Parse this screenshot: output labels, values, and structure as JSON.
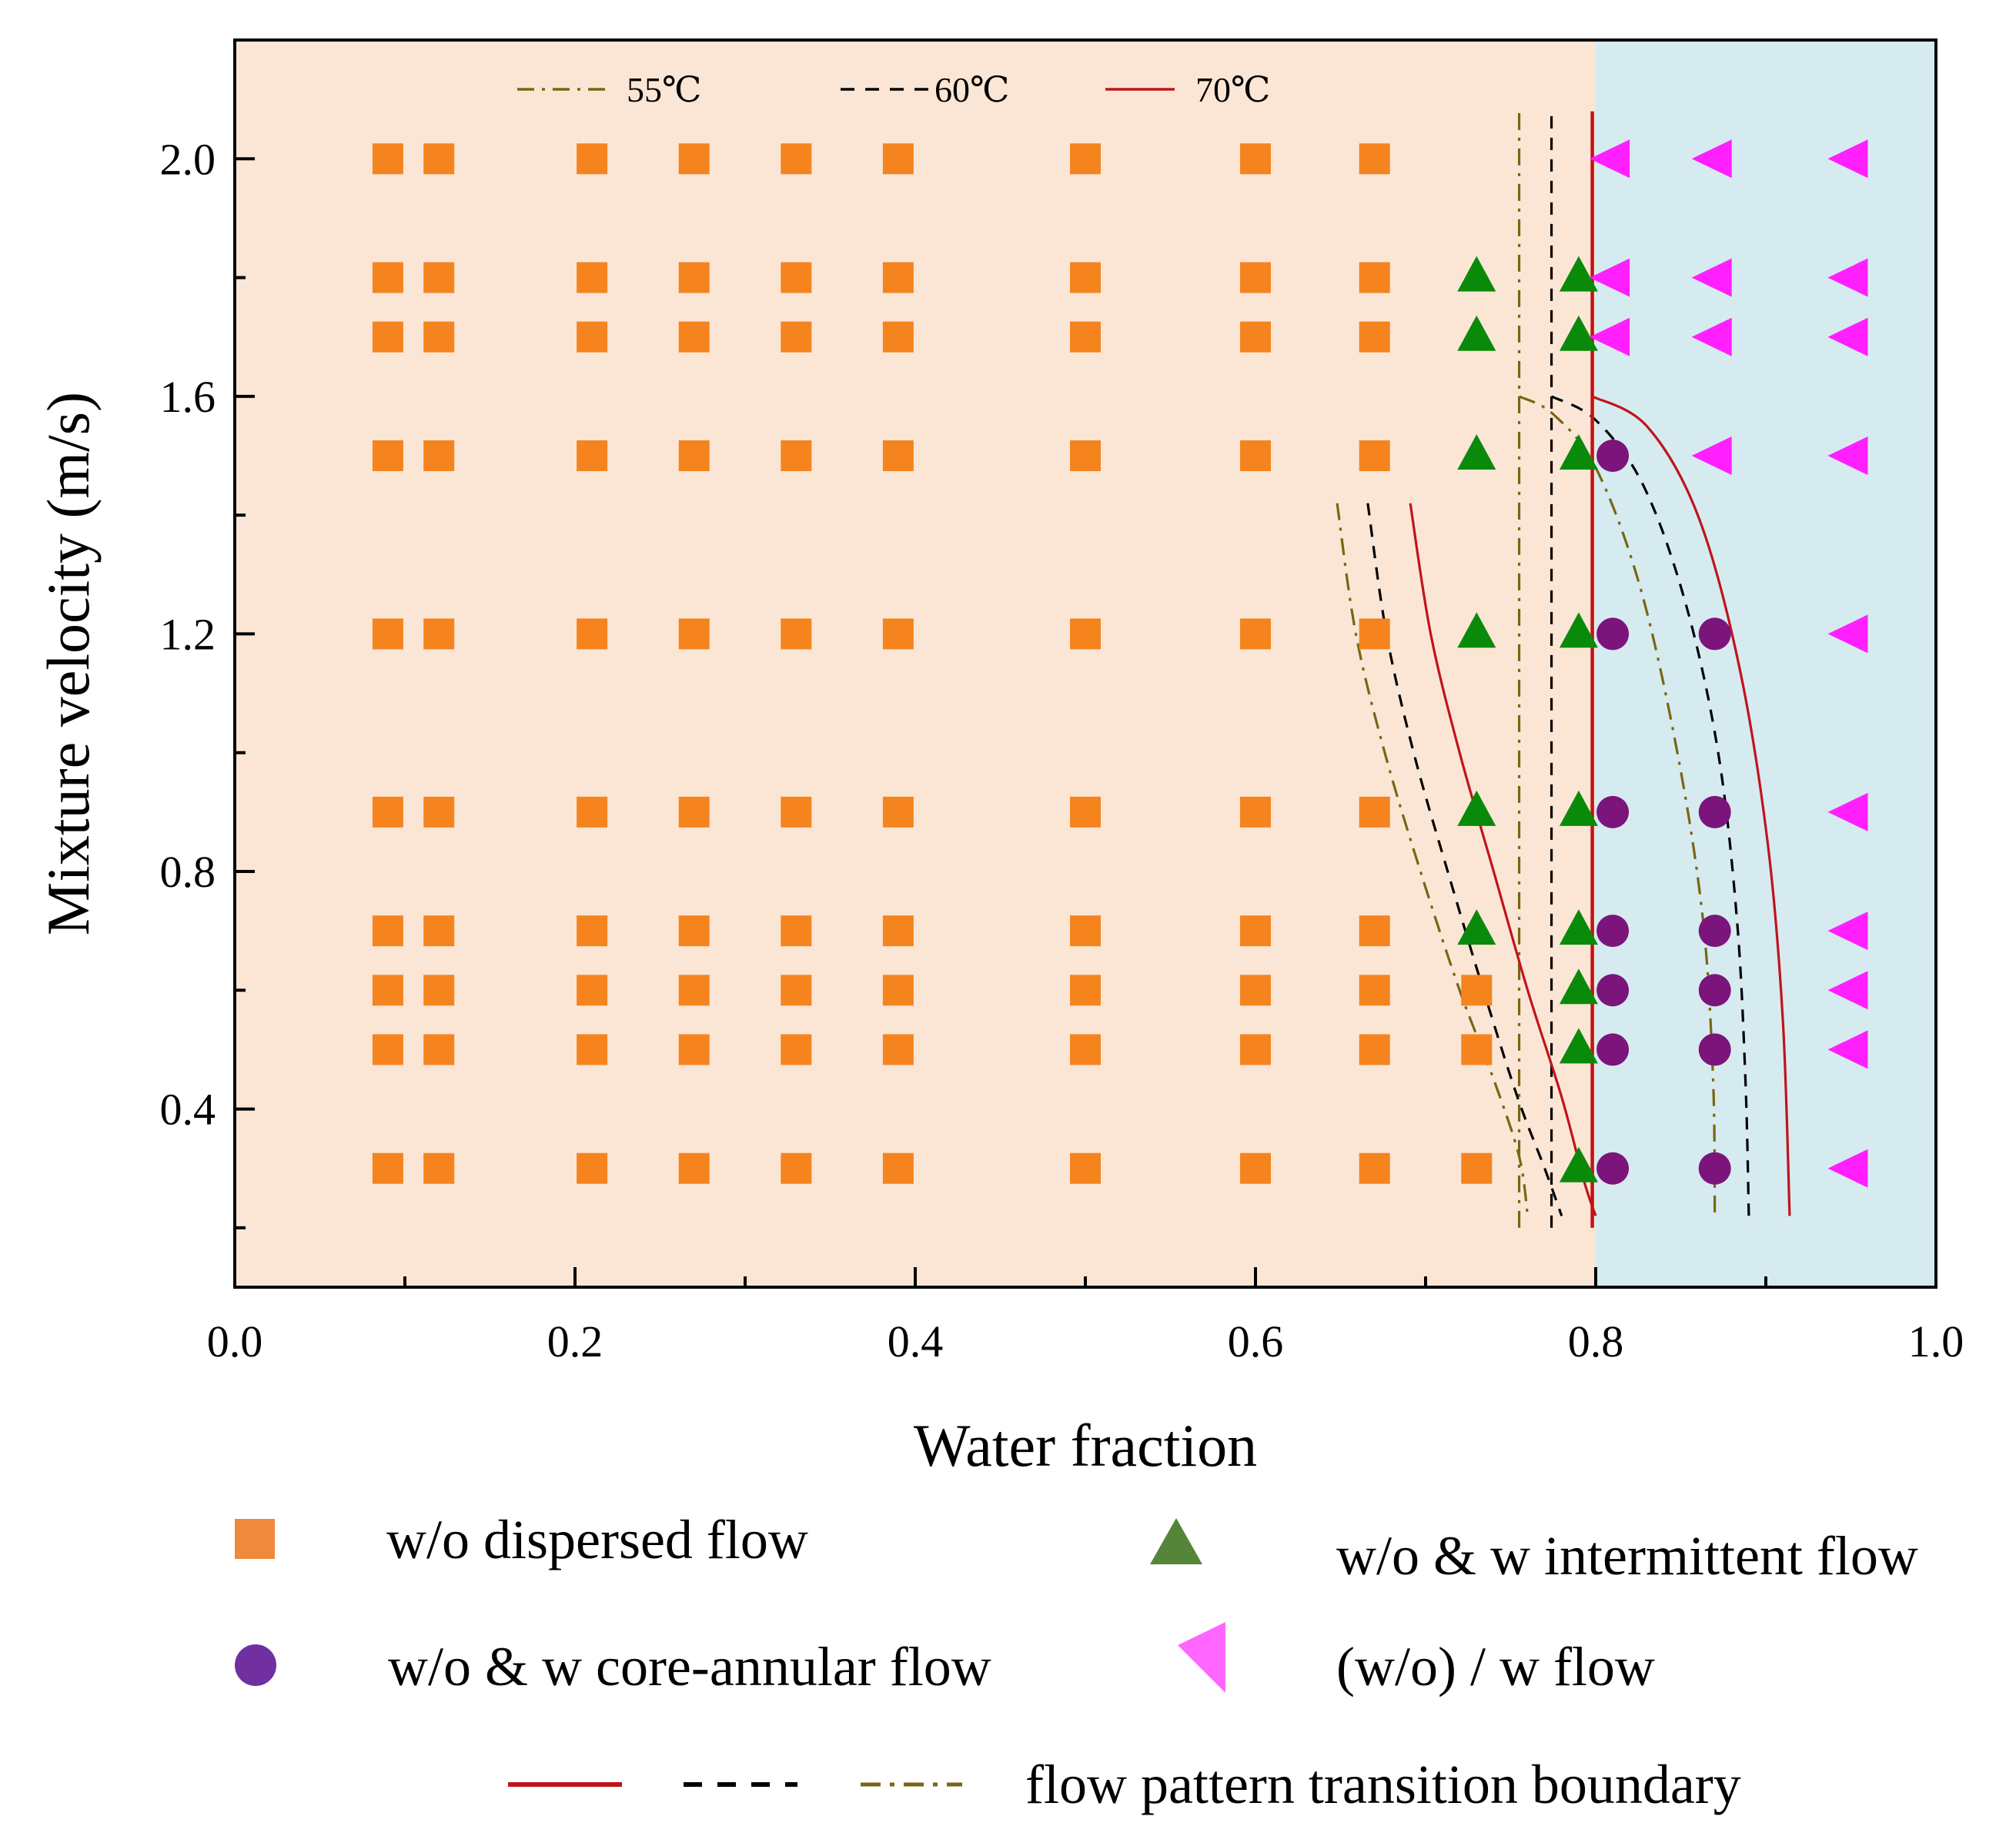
{
  "chart_data": {
    "type": "scatter",
    "xlabel": "Water fraction",
    "ylabel": "Mixture velocity (m/s)",
    "xlim": [
      0.0,
      1.0
    ],
    "ylim": [
      0.1,
      2.2
    ],
    "xticks": [
      0.0,
      0.2,
      0.4,
      0.6,
      0.8,
      1.0
    ],
    "xtick_labels": [
      "0.0",
      "0.2",
      "0.4",
      "0.6",
      "0.8",
      "1.0"
    ],
    "yticks": [
      0.4,
      0.8,
      1.2,
      1.6,
      2.0
    ],
    "ytick_labels": [
      "0.4",
      "0.8",
      "1.2",
      "1.6",
      "2.0"
    ],
    "regions": [
      {
        "x_from": 0.0,
        "x_to": 0.8,
        "color": "#fbe6d6"
      },
      {
        "x_from": 0.8,
        "x_to": 1.0,
        "color": "#d6ebf0"
      }
    ],
    "series": [
      {
        "name": "w/o dispersed flow",
        "marker": "square",
        "color": "#f5841f",
        "points": [
          [
            0.09,
            2.0
          ],
          [
            0.12,
            2.0
          ],
          [
            0.21,
            2.0
          ],
          [
            0.27,
            2.0
          ],
          [
            0.33,
            2.0
          ],
          [
            0.39,
            2.0
          ],
          [
            0.5,
            2.0
          ],
          [
            0.6,
            2.0
          ],
          [
            0.67,
            2.0
          ],
          [
            0.09,
            1.8
          ],
          [
            0.12,
            1.8
          ],
          [
            0.21,
            1.8
          ],
          [
            0.27,
            1.8
          ],
          [
            0.33,
            1.8
          ],
          [
            0.39,
            1.8
          ],
          [
            0.5,
            1.8
          ],
          [
            0.6,
            1.8
          ],
          [
            0.67,
            1.8
          ],
          [
            0.09,
            1.7
          ],
          [
            0.12,
            1.7
          ],
          [
            0.21,
            1.7
          ],
          [
            0.27,
            1.7
          ],
          [
            0.33,
            1.7
          ],
          [
            0.39,
            1.7
          ],
          [
            0.5,
            1.7
          ],
          [
            0.6,
            1.7
          ],
          [
            0.67,
            1.7
          ],
          [
            0.09,
            1.5
          ],
          [
            0.12,
            1.5
          ],
          [
            0.21,
            1.5
          ],
          [
            0.27,
            1.5
          ],
          [
            0.33,
            1.5
          ],
          [
            0.39,
            1.5
          ],
          [
            0.5,
            1.5
          ],
          [
            0.6,
            1.5
          ],
          [
            0.67,
            1.5
          ],
          [
            0.09,
            1.2
          ],
          [
            0.12,
            1.2
          ],
          [
            0.21,
            1.2
          ],
          [
            0.27,
            1.2
          ],
          [
            0.33,
            1.2
          ],
          [
            0.39,
            1.2
          ],
          [
            0.5,
            1.2
          ],
          [
            0.6,
            1.2
          ],
          [
            0.67,
            1.2
          ],
          [
            0.09,
            0.9
          ],
          [
            0.12,
            0.9
          ],
          [
            0.21,
            0.9
          ],
          [
            0.27,
            0.9
          ],
          [
            0.33,
            0.9
          ],
          [
            0.39,
            0.9
          ],
          [
            0.5,
            0.9
          ],
          [
            0.6,
            0.9
          ],
          [
            0.67,
            0.9
          ],
          [
            0.09,
            0.7
          ],
          [
            0.12,
            0.7
          ],
          [
            0.21,
            0.7
          ],
          [
            0.27,
            0.7
          ],
          [
            0.33,
            0.7
          ],
          [
            0.39,
            0.7
          ],
          [
            0.5,
            0.7
          ],
          [
            0.6,
            0.7
          ],
          [
            0.67,
            0.7
          ],
          [
            0.09,
            0.6
          ],
          [
            0.12,
            0.6
          ],
          [
            0.21,
            0.6
          ],
          [
            0.27,
            0.6
          ],
          [
            0.33,
            0.6
          ],
          [
            0.39,
            0.6
          ],
          [
            0.5,
            0.6
          ],
          [
            0.6,
            0.6
          ],
          [
            0.67,
            0.6
          ],
          [
            0.73,
            0.6
          ],
          [
            0.09,
            0.5
          ],
          [
            0.12,
            0.5
          ],
          [
            0.21,
            0.5
          ],
          [
            0.27,
            0.5
          ],
          [
            0.33,
            0.5
          ],
          [
            0.39,
            0.5
          ],
          [
            0.5,
            0.5
          ],
          [
            0.6,
            0.5
          ],
          [
            0.67,
            0.5
          ],
          [
            0.73,
            0.5
          ],
          [
            0.09,
            0.3
          ],
          [
            0.12,
            0.3
          ],
          [
            0.21,
            0.3
          ],
          [
            0.27,
            0.3
          ],
          [
            0.33,
            0.3
          ],
          [
            0.39,
            0.3
          ],
          [
            0.5,
            0.3
          ],
          [
            0.6,
            0.3
          ],
          [
            0.67,
            0.3
          ],
          [
            0.73,
            0.3
          ]
        ]
      },
      {
        "name": "w/o & w intermittent flow",
        "marker": "triangle-up",
        "color": "#0a8a0a",
        "points": [
          [
            0.73,
            1.8
          ],
          [
            0.79,
            1.8
          ],
          [
            0.73,
            1.7
          ],
          [
            0.79,
            1.7
          ],
          [
            0.73,
            1.5
          ],
          [
            0.79,
            1.5
          ],
          [
            0.73,
            1.2
          ],
          [
            0.79,
            1.2
          ],
          [
            0.73,
            0.9
          ],
          [
            0.79,
            0.9
          ],
          [
            0.73,
            0.7
          ],
          [
            0.79,
            0.7
          ],
          [
            0.79,
            0.6
          ],
          [
            0.79,
            0.5
          ],
          [
            0.79,
            0.3
          ]
        ]
      },
      {
        "name": "w/o & w core-annular flow",
        "marker": "circle",
        "color": "#7b157b",
        "points": [
          [
            0.81,
            1.5
          ],
          [
            0.81,
            1.2
          ],
          [
            0.87,
            1.2
          ],
          [
            0.81,
            0.9
          ],
          [
            0.87,
            0.9
          ],
          [
            0.81,
            0.7
          ],
          [
            0.87,
            0.7
          ],
          [
            0.81,
            0.6
          ],
          [
            0.87,
            0.6
          ],
          [
            0.81,
            0.5
          ],
          [
            0.87,
            0.5
          ],
          [
            0.81,
            0.3
          ],
          [
            0.87,
            0.3
          ]
        ]
      },
      {
        "name": "(w/o) / w flow",
        "marker": "triangle-left",
        "color": "#ff1fff",
        "points": [
          [
            0.81,
            2.0
          ],
          [
            0.87,
            2.0
          ],
          [
            0.95,
            2.0
          ],
          [
            0.81,
            1.8
          ],
          [
            0.87,
            1.8
          ],
          [
            0.95,
            1.8
          ],
          [
            0.81,
            1.7
          ],
          [
            0.87,
            1.7
          ],
          [
            0.95,
            1.7
          ],
          [
            0.87,
            1.5
          ],
          [
            0.95,
            1.5
          ],
          [
            0.95,
            1.2
          ],
          [
            0.95,
            0.9
          ],
          [
            0.95,
            0.7
          ],
          [
            0.95,
            0.6
          ],
          [
            0.95,
            0.5
          ],
          [
            0.95,
            0.3
          ]
        ]
      }
    ],
    "boundaries": [
      {
        "name": "55℃",
        "style": "dashdot",
        "color": "#7a6512",
        "lines": [
          [
            [
              0.648,
              1.42
            ],
            [
              0.659,
              1.2
            ],
            [
              0.676,
              1.0
            ],
            [
              0.697,
              0.8
            ],
            [
              0.72,
              0.6
            ],
            [
              0.74,
              0.45
            ],
            [
              0.755,
              0.32
            ],
            [
              0.76,
              0.22
            ]
          ],
          [
            [
              0.755,
              0.2
            ],
            [
              0.755,
              2.08
            ]
          ],
          [
            [
              0.755,
              1.6
            ],
            [
              0.775,
              1.57
            ],
            [
              0.8,
              1.48
            ],
            [
              0.826,
              1.28
            ],
            [
              0.848,
              1.0
            ],
            [
              0.863,
              0.72
            ],
            [
              0.869,
              0.45
            ],
            [
              0.87,
              0.22
            ]
          ]
        ]
      },
      {
        "name": "60℃",
        "style": "dashed",
        "color": "#000000",
        "lines": [
          [
            [
              0.666,
              1.42
            ],
            [
              0.677,
              1.2
            ],
            [
              0.693,
              1.0
            ],
            [
              0.713,
              0.8
            ],
            [
              0.734,
              0.6
            ],
            [
              0.754,
              0.42
            ],
            [
              0.77,
              0.3
            ],
            [
              0.78,
              0.22
            ]
          ],
          [
            [
              0.774,
              0.2
            ],
            [
              0.774,
              2.08
            ]
          ],
          [
            [
              0.774,
              1.6
            ],
            [
              0.8,
              1.56
            ],
            [
              0.828,
              1.45
            ],
            [
              0.853,
              1.25
            ],
            [
              0.872,
              1.0
            ],
            [
              0.883,
              0.72
            ],
            [
              0.888,
              0.45
            ],
            [
              0.89,
              0.22
            ]
          ]
        ]
      },
      {
        "name": "70℃",
        "style": "solid",
        "color": "#c0141b",
        "lines": [
          [
            [
              0.691,
              1.42
            ],
            [
              0.703,
              1.2
            ],
            [
              0.72,
              1.0
            ],
            [
              0.74,
              0.8
            ],
            [
              0.76,
              0.6
            ],
            [
              0.78,
              0.42
            ],
            [
              0.793,
              0.28
            ],
            [
              0.8,
              0.22
            ]
          ],
          [
            [
              0.798,
              0.2
            ],
            [
              0.798,
              2.08
            ]
          ],
          [
            [
              0.798,
              1.6
            ],
            [
              0.83,
              1.55
            ],
            [
              0.86,
              1.4
            ],
            [
              0.884,
              1.15
            ],
            [
              0.901,
              0.85
            ],
            [
              0.91,
              0.55
            ],
            [
              0.914,
              0.22
            ]
          ]
        ]
      }
    ],
    "inner_legend": [
      "55℃",
      "60℃",
      "70℃"
    ],
    "legend": {
      "dispersed": "w/o dispersed flow",
      "intermittent": "w/o & w intermittent flow",
      "core_annular": "w/o & w core-annular flow",
      "water_flow": "(w/o) / w flow",
      "boundary": "flow pattern transition boundary"
    }
  }
}
